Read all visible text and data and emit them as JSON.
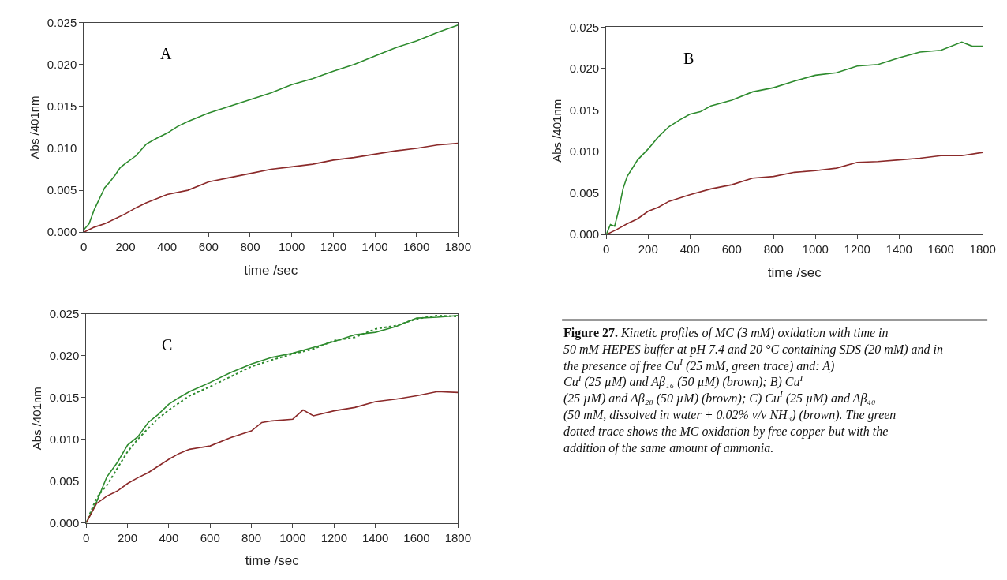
{
  "chart_data": [
    {
      "type": "line",
      "xlabel": "time /sec",
      "ylabel": "Abs /401nm",
      "annotations": [
        "A"
      ],
      "xlim": [
        0,
        1800
      ],
      "xticks": [
        0,
        200,
        400,
        600,
        800,
        1000,
        1200,
        1400,
        1600,
        1800
      ],
      "ylim": [
        0,
        0.025
      ],
      "yticks": [
        {
          "value": 0,
          "label": "0.000"
        },
        {
          "value": 0.005,
          "label": "0.005"
        },
        {
          "value": 0.01,
          "label": "0.010"
        },
        {
          "value": 0.015,
          "label": "0.015"
        },
        {
          "value": 0.02,
          "label": "0.020"
        },
        {
          "value": 0.025,
          "label": "0.025"
        }
      ],
      "marker": "none",
      "series": [
        {
          "color": "#2e8b2e",
          "line_style": "solid",
          "x": [
            0,
            25,
            50,
            75,
            100,
            125,
            150,
            175,
            200,
            250,
            300,
            350,
            400,
            450,
            500,
            600,
            700,
            800,
            900,
            1000,
            1100,
            1200,
            1300,
            1400,
            1500,
            1600,
            1700,
            1800
          ],
          "values": [
            0.0003,
            0.001,
            0.0027,
            0.004,
            0.0053,
            0.006,
            0.0068,
            0.0077,
            0.0082,
            0.0091,
            0.0105,
            0.0112,
            0.0118,
            0.0126,
            0.0132,
            0.0142,
            0.015,
            0.0158,
            0.0166,
            0.0176,
            0.0183,
            0.0192,
            0.02,
            0.021,
            0.022,
            0.0228,
            0.0238,
            0.0247
          ]
        },
        {
          "color": "#8b2a2a",
          "line_style": "solid",
          "x": [
            0,
            50,
            100,
            150,
            200,
            250,
            300,
            400,
            500,
            600,
            700,
            800,
            900,
            1000,
            1100,
            1200,
            1300,
            1400,
            1500,
            1600,
            1700,
            1800
          ],
          "values": [
            0,
            0.0006,
            0.001,
            0.0016,
            0.0022,
            0.0029,
            0.0035,
            0.0045,
            0.005,
            0.006,
            0.0065,
            0.007,
            0.0075,
            0.0078,
            0.0081,
            0.0086,
            0.0089,
            0.0093,
            0.0097,
            0.01,
            0.0104,
            0.0106
          ]
        }
      ]
    },
    {
      "type": "line",
      "xlabel": "time /sec",
      "ylabel": "Abs /401nm",
      "annotations": [
        "B"
      ],
      "xlim": [
        0,
        1800
      ],
      "xticks": [
        0,
        200,
        400,
        600,
        800,
        1000,
        1200,
        1400,
        1600,
        1800
      ],
      "ylim": [
        0,
        0.025
      ],
      "yticks": [
        {
          "value": 0,
          "label": "0.000"
        },
        {
          "value": 0.005,
          "label": "0.005"
        },
        {
          "value": 0.01,
          "label": "0.010"
        },
        {
          "value": 0.015,
          "label": "0.015"
        },
        {
          "value": 0.02,
          "label": "0.020"
        },
        {
          "value": 0.025,
          "label": "0.025"
        }
      ],
      "marker": "none",
      "series": [
        {
          "color": "#2e8b2e",
          "line_style": "solid",
          "x": [
            0,
            20,
            40,
            60,
            80,
            100,
            150,
            200,
            250,
            300,
            350,
            400,
            450,
            500,
            600,
            700,
            800,
            900,
            1000,
            1100,
            1200,
            1300,
            1400,
            1500,
            1600,
            1700,
            1750,
            1800
          ],
          "values": [
            0,
            0.0012,
            0.001,
            0.003,
            0.0055,
            0.007,
            0.009,
            0.0103,
            0.0118,
            0.013,
            0.0138,
            0.0145,
            0.0148,
            0.0155,
            0.0162,
            0.0172,
            0.0177,
            0.0185,
            0.0192,
            0.0195,
            0.0203,
            0.0205,
            0.0213,
            0.022,
            0.0222,
            0.0232,
            0.0227,
            0.0227
          ]
        },
        {
          "color": "#8b2a2a",
          "line_style": "solid",
          "x": [
            0,
            50,
            100,
            150,
            200,
            250,
            300,
            400,
            500,
            600,
            700,
            800,
            900,
            1000,
            1100,
            1200,
            1300,
            1400,
            1500,
            1600,
            1700,
            1800
          ],
          "values": [
            0,
            0.0006,
            0.0013,
            0.0019,
            0.0028,
            0.0033,
            0.004,
            0.0048,
            0.0055,
            0.006,
            0.0068,
            0.007,
            0.0075,
            0.0077,
            0.008,
            0.0087,
            0.0088,
            0.009,
            0.0092,
            0.0095,
            0.0095,
            0.0099
          ]
        }
      ]
    },
    {
      "type": "line",
      "xlabel": "time /sec",
      "ylabel": "Abs /401nm",
      "annotations": [
        "C"
      ],
      "xlim": [
        0,
        1800
      ],
      "xticks": [
        0,
        200,
        400,
        600,
        800,
        1000,
        1200,
        1400,
        1600,
        1800
      ],
      "ylim": [
        0,
        0.025
      ],
      "yticks": [
        {
          "value": 0,
          "label": "0.000"
        },
        {
          "value": 0.005,
          "label": "0.005"
        },
        {
          "value": 0.01,
          "label": "0.010"
        },
        {
          "value": 0.015,
          "label": "0.015"
        },
        {
          "value": 0.02,
          "label": "0.020"
        },
        {
          "value": 0.025,
          "label": "0.025"
        }
      ],
      "marker": "none",
      "series": [
        {
          "color": "#2e8b2e",
          "line_style": "solid",
          "x": [
            0,
            50,
            100,
            150,
            200,
            250,
            300,
            350,
            400,
            450,
            500,
            600,
            700,
            800,
            900,
            1000,
            1100,
            1200,
            1300,
            1400,
            1500,
            1600,
            1700,
            1800
          ],
          "values": [
            0,
            0.0025,
            0.0055,
            0.0072,
            0.0093,
            0.0103,
            0.012,
            0.013,
            0.0142,
            0.015,
            0.0157,
            0.0168,
            0.018,
            0.019,
            0.0198,
            0.0203,
            0.021,
            0.0217,
            0.0225,
            0.0228,
            0.0235,
            0.0245,
            0.0246,
            0.0248
          ]
        },
        {
          "color": "#2e8b2e",
          "line_style": "dotted",
          "x": [
            0,
            50,
            100,
            150,
            200,
            250,
            300,
            350,
            400,
            500,
            600,
            700,
            800,
            900,
            1000,
            1100,
            1200,
            1300,
            1400,
            1500,
            1600,
            1700,
            1800
          ],
          "values": [
            0,
            0.003,
            0.0045,
            0.0065,
            0.0085,
            0.01,
            0.0113,
            0.0125,
            0.0135,
            0.0152,
            0.0163,
            0.0175,
            0.0187,
            0.0195,
            0.0202,
            0.0208,
            0.0218,
            0.0222,
            0.0232,
            0.0236,
            0.0244,
            0.0248,
            0.0247
          ]
        },
        {
          "color": "#8b2a2a",
          "line_style": "solid",
          "x": [
            0,
            50,
            100,
            150,
            200,
            250,
            300,
            350,
            400,
            450,
            500,
            600,
            700,
            800,
            850,
            900,
            1000,
            1050,
            1100,
            1200,
            1300,
            1400,
            1500,
            1600,
            1700,
            1800
          ],
          "values": [
            0,
            0.0023,
            0.0032,
            0.0038,
            0.0047,
            0.0054,
            0.006,
            0.0068,
            0.0076,
            0.0083,
            0.0088,
            0.0092,
            0.0102,
            0.011,
            0.012,
            0.0122,
            0.0124,
            0.0135,
            0.0128,
            0.0134,
            0.0138,
            0.0145,
            0.0148,
            0.0152,
            0.0157,
            0.0156
          ]
        }
      ]
    },
    {
      "type": "other",
      "title": "Figure 27.",
      "annotations": [
        "Kinetic profiles of MC (3 mM) oxidation with time in 50 mM HEPES buffer at pH 7.4 and 20 °C containing SDS (20 mM) and in the presence of free Cu$^{I}$ (25 mM, green trace) and: A) Cu$^{I}$ (25 µM) and Aβ₁₆ (50 µM) (brown); B) Cu$^{I}$ (25 µM) and Aβ₂₈ (50 µM) (brown); C) Cu$^{I}$ (25 µM) and Aβ₄₀ (50 mM, dissolved in water + 0.02% v/v NH₃) (brown). The green dotted trace shows the MC oxidation by free copper but with the addition of the same amount of ammonia."
      ]
    }
  ]
}
